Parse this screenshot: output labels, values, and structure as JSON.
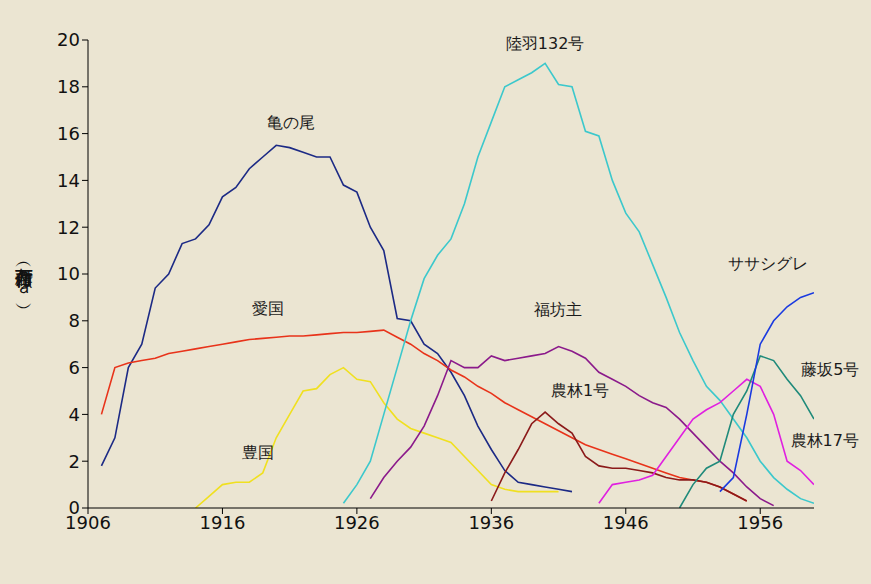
{
  "chart_data": {
    "type": "line",
    "y_label": "作付面積（万ｈａ）",
    "grid": false,
    "x": [
      1906,
      1907,
      1908,
      1909,
      1910,
      1911,
      1912,
      1913,
      1914,
      1915,
      1916,
      1917,
      1918,
      1919,
      1920,
      1921,
      1922,
      1923,
      1924,
      1925,
      1926,
      1927,
      1928,
      1929,
      1930,
      1931,
      1932,
      1933,
      1934,
      1935,
      1936,
      1937,
      1938,
      1939,
      1940,
      1941,
      1942,
      1943,
      1944,
      1945,
      1946,
      1947,
      1948,
      1949,
      1950,
      1951,
      1952,
      1953,
      1954,
      1955,
      1956,
      1957,
      1958,
      1959,
      1960
    ],
    "xlim": [
      1906,
      1960
    ],
    "xticks": [
      1906,
      1916,
      1926,
      1936,
      1946,
      1956
    ],
    "ylim": [
      0,
      20
    ],
    "yticks": [
      0,
      2,
      4,
      6,
      8,
      10,
      12,
      14,
      16,
      18,
      20
    ],
    "series": [
      {
        "name": "亀の尾",
        "color": "#1c2a85",
        "values": [
          null,
          1.8,
          3.0,
          6.0,
          7.0,
          9.4,
          10.0,
          11.3,
          11.5,
          12.1,
          13.3,
          13.7,
          14.5,
          15.0,
          15.5,
          15.4,
          15.2,
          15.0,
          15.0,
          13.8,
          13.5,
          12.0,
          11.0,
          8.1,
          8.0,
          7.0,
          6.6,
          5.8,
          4.8,
          3.5,
          2.5,
          1.6,
          1.1,
          1.0,
          0.9,
          0.8,
          0.7,
          null,
          null,
          null,
          null,
          null,
          null,
          null,
          null,
          null,
          null,
          null,
          null,
          null,
          null,
          null,
          null,
          null,
          null
        ]
      },
      {
        "name": "愛国",
        "color": "#e8331a",
        "values": [
          null,
          4.0,
          6.0,
          6.2,
          6.3,
          6.4,
          6.6,
          6.7,
          6.8,
          6.9,
          7.0,
          7.1,
          7.2,
          7.25,
          7.3,
          7.35,
          7.35,
          7.4,
          7.45,
          7.5,
          7.5,
          7.55,
          7.6,
          7.3,
          7.0,
          6.6,
          6.3,
          5.9,
          5.6,
          5.2,
          4.9,
          4.5,
          4.2,
          3.9,
          3.6,
          3.3,
          3.0,
          2.7,
          2.5,
          2.3,
          2.1,
          1.9,
          1.7,
          1.5,
          1.3,
          1.2,
          1.1,
          0.9,
          0.6,
          0.3,
          null,
          null,
          null,
          null,
          null
        ]
      },
      {
        "name": "豊国",
        "color": "#f0e020",
        "values": [
          null,
          null,
          null,
          null,
          null,
          null,
          null,
          null,
          0,
          0.5,
          1.0,
          1.1,
          1.1,
          1.5,
          3.0,
          4.0,
          5.0,
          5.1,
          5.7,
          6.0,
          5.5,
          5.4,
          4.5,
          3.8,
          3.4,
          3.2,
          3.0,
          2.8,
          2.2,
          1.6,
          1.0,
          0.8,
          0.7,
          0.7,
          0.7,
          0.7,
          null,
          null,
          null,
          null,
          null,
          null,
          null,
          null,
          null,
          null,
          null,
          null,
          null,
          null,
          null,
          null,
          null,
          null,
          null
        ]
      },
      {
        "name": "陸羽132号",
        "color": "#3cc8cc",
        "values": [
          null,
          null,
          null,
          null,
          null,
          null,
          null,
          null,
          null,
          null,
          null,
          null,
          null,
          null,
          null,
          null,
          null,
          null,
          null,
          0.2,
          1.0,
          2.0,
          4.0,
          6.0,
          8.0,
          9.8,
          10.8,
          11.5,
          13.0,
          15.0,
          16.5,
          18.0,
          18.3,
          18.6,
          19.0,
          18.1,
          18.0,
          16.1,
          15.9,
          14.0,
          12.6,
          11.8,
          10.4,
          9.0,
          7.5,
          6.3,
          5.2,
          4.6,
          3.8,
          3.0,
          2.0,
          1.3,
          0.8,
          0.4,
          0.2
        ]
      },
      {
        "name": "福坊主",
        "color": "#8b1a8b",
        "values": [
          null,
          null,
          null,
          null,
          null,
          null,
          null,
          null,
          null,
          null,
          null,
          null,
          null,
          null,
          null,
          null,
          null,
          null,
          null,
          null,
          null,
          0.4,
          1.3,
          2.0,
          2.6,
          3.5,
          4.8,
          6.3,
          6.0,
          6.0,
          6.5,
          6.3,
          6.4,
          6.5,
          6.6,
          6.9,
          6.7,
          6.4,
          5.8,
          5.5,
          5.2,
          4.8,
          4.5,
          4.3,
          3.8,
          3.2,
          2.6,
          2.0,
          1.5,
          0.9,
          0.4,
          0.1,
          null,
          null,
          null
        ]
      },
      {
        "name": "農林1号",
        "color": "#8b1a1a",
        "values": [
          null,
          null,
          null,
          null,
          null,
          null,
          null,
          null,
          null,
          null,
          null,
          null,
          null,
          null,
          null,
          null,
          null,
          null,
          null,
          null,
          null,
          null,
          null,
          null,
          null,
          null,
          null,
          null,
          null,
          null,
          0.3,
          1.5,
          2.5,
          3.6,
          4.1,
          3.6,
          3.2,
          2.2,
          1.8,
          1.7,
          1.7,
          1.6,
          1.5,
          1.3,
          1.2,
          1.2,
          1.1,
          0.9,
          0.6,
          0.3,
          null,
          null,
          null,
          null,
          null
        ]
      },
      {
        "name": "農林17号",
        "color": "#e020e0",
        "values": [
          null,
          null,
          null,
          null,
          null,
          null,
          null,
          null,
          null,
          null,
          null,
          null,
          null,
          null,
          null,
          null,
          null,
          null,
          null,
          null,
          null,
          null,
          null,
          null,
          null,
          null,
          null,
          null,
          null,
          null,
          null,
          null,
          null,
          null,
          null,
          null,
          null,
          null,
          0.2,
          1.0,
          1.1,
          1.2,
          1.4,
          2.2,
          3.0,
          3.8,
          4.2,
          4.5,
          5.0,
          5.5,
          5.2,
          4.0,
          2.0,
          1.6,
          1.0
        ]
      },
      {
        "name": "藤坂5号",
        "color": "#1f8a7a",
        "values": [
          null,
          null,
          null,
          null,
          null,
          null,
          null,
          null,
          null,
          null,
          null,
          null,
          null,
          null,
          null,
          null,
          null,
          null,
          null,
          null,
          null,
          null,
          null,
          null,
          null,
          null,
          null,
          null,
          null,
          null,
          null,
          null,
          null,
          null,
          null,
          null,
          null,
          null,
          null,
          null,
          null,
          null,
          null,
          null,
          0,
          1.0,
          1.7,
          2.0,
          4.0,
          5.0,
          6.5,
          6.3,
          5.5,
          4.8,
          3.8
        ]
      },
      {
        "name": "ササシグレ",
        "color": "#1a3ae0",
        "values": [
          null,
          null,
          null,
          null,
          null,
          null,
          null,
          null,
          null,
          null,
          null,
          null,
          null,
          null,
          null,
          null,
          null,
          null,
          null,
          null,
          null,
          null,
          null,
          null,
          null,
          null,
          null,
          null,
          null,
          null,
          null,
          null,
          null,
          null,
          null,
          null,
          null,
          null,
          null,
          null,
          null,
          null,
          null,
          null,
          null,
          null,
          null,
          0.7,
          1.3,
          4.0,
          7.0,
          8.0,
          8.6,
          9.0,
          9.2
        ]
      }
    ]
  }
}
